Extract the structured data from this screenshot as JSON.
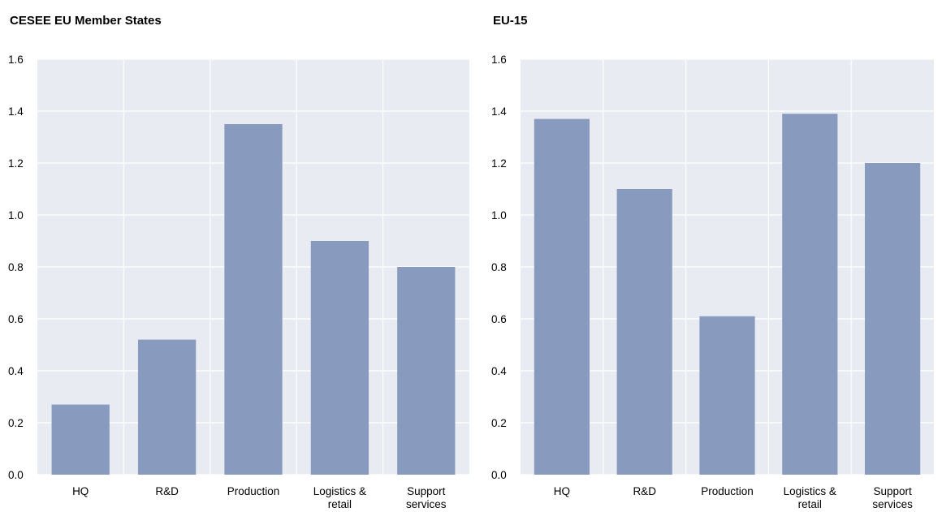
{
  "chart_data": [
    {
      "type": "bar",
      "title": "CESEE EU Member States",
      "categories": [
        [
          "HQ"
        ],
        [
          "R&D"
        ],
        [
          "Production"
        ],
        [
          "Logistics &",
          "retail"
        ],
        [
          "Support",
          "services"
        ]
      ],
      "values": [
        0.27,
        0.52,
        1.35,
        0.9,
        0.8
      ],
      "ylim": [
        0,
        1.6
      ],
      "yticks": [
        "0.0",
        "0.2",
        "0.4",
        "0.6",
        "0.8",
        "1.0",
        "1.2",
        "1.4",
        "1.6"
      ],
      "grid": true,
      "colors": {
        "bar": "#889bbe",
        "plot_bg": "#e8ebf2",
        "grid": "#ffffff"
      }
    },
    {
      "type": "bar",
      "title": "EU-15",
      "categories": [
        [
          "HQ"
        ],
        [
          "R&D"
        ],
        [
          "Production"
        ],
        [
          "Logistics &",
          "retail"
        ],
        [
          "Support",
          "services"
        ]
      ],
      "values": [
        1.37,
        1.1,
        0.61,
        1.39,
        1.2
      ],
      "ylim": [
        0,
        1.6
      ],
      "yticks": [
        "0.0",
        "0.2",
        "0.4",
        "0.6",
        "0.8",
        "1.0",
        "1.2",
        "1.4",
        "1.6"
      ],
      "grid": true,
      "colors": {
        "bar": "#889bbe",
        "plot_bg": "#e8ebf2",
        "grid": "#ffffff"
      }
    }
  ]
}
